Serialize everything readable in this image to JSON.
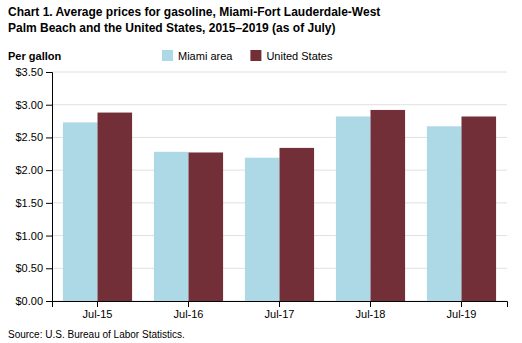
{
  "chart_data": {
    "type": "bar",
    "title": "Chart 1. Average prices for gasoline, Miami-Fort Lauderdale-West",
    "subtitle": "Palm Beach and the United States, 2015–2019 (as of July)",
    "ylabel": "Per gallon",
    "source": "Source: U.S. Bureau of Labor Statistics.",
    "categories": [
      "Jul-15",
      "Jul-16",
      "Jul-17",
      "Jul-18",
      "Jul-19"
    ],
    "series": [
      {
        "name": "Miami area",
        "color": "#add8e6",
        "values": [
          2.73,
          2.28,
          2.19,
          2.82,
          2.67
        ]
      },
      {
        "name": "United States",
        "color": "#722f37",
        "values": [
          2.88,
          2.27,
          2.34,
          2.92,
          2.82
        ]
      }
    ],
    "ylim": [
      0,
      3.5
    ],
    "yticks": [
      {
        "value": 0.0,
        "label": "$0.00"
      },
      {
        "value": 0.5,
        "label": "$0.50"
      },
      {
        "value": 1.0,
        "label": "$1.00"
      },
      {
        "value": 1.5,
        "label": "$1.50"
      },
      {
        "value": 2.0,
        "label": "$2.00"
      },
      {
        "value": 2.5,
        "label": "$2.50"
      },
      {
        "value": 3.0,
        "label": "$3.00"
      },
      {
        "value": 3.5,
        "label": "$3.50"
      }
    ],
    "grid": true,
    "legend": "top"
  }
}
